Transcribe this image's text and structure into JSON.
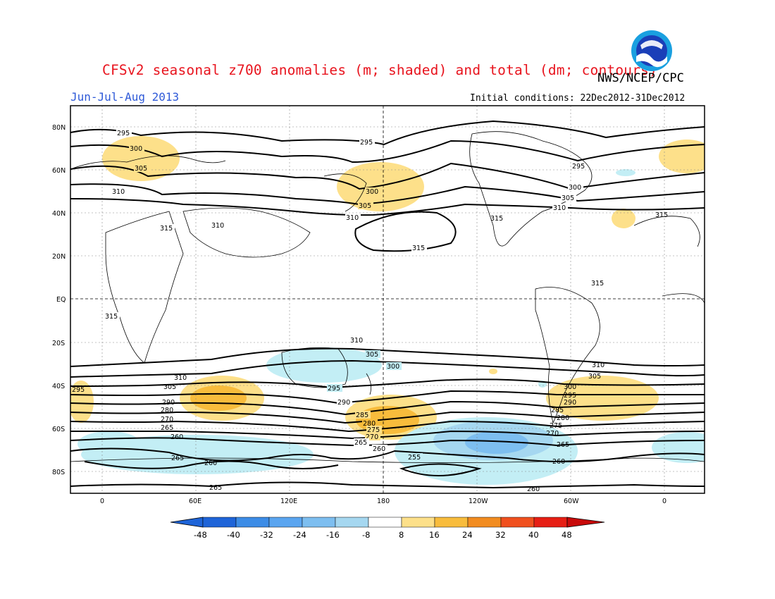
{
  "header": {
    "title": "CFSv2 seasonal z700 anomalies (m; shaded) and total (dm; contours)",
    "agency": "NWS/NCEP/CPC",
    "season": "Jun-Jul-Aug 2013",
    "init_conditions": "Initial conditions: 22Dec2012-31Dec2012",
    "logo_text": "NOAA"
  },
  "axes": {
    "lat_ticks": [
      "80N",
      "60N",
      "40N",
      "20N",
      "EQ",
      "20S",
      "40S",
      "60S",
      "80S"
    ],
    "lon_ticks": [
      "0",
      "60E",
      "120E",
      "180",
      "120W",
      "60W",
      "0"
    ]
  },
  "contour_labels": [
    "295",
    "300",
    "305",
    "310",
    "315",
    "295",
    "300",
    "305",
    "310",
    "315",
    "300",
    "305",
    "310",
    "315",
    "315",
    "310",
    "305",
    "300",
    "295",
    "290",
    "285",
    "280",
    "275",
    "270",
    "265",
    "260",
    "255"
  ],
  "colorbar": {
    "labels": [
      "-48",
      "-40",
      "-32",
      "-24",
      "-16",
      "-8",
      "8",
      "16",
      "24",
      "32",
      "40",
      "48"
    ],
    "colors": [
      "#1e64d8",
      "#3c8ce6",
      "#5aa5f0",
      "#7dbef0",
      "#a5d7f0",
      "#c3eef5",
      "#ffffff",
      "#fde08a",
      "#f8bc3c",
      "#f28c20",
      "#f0501e",
      "#e61e14",
      "#c80a0a"
    ]
  }
}
